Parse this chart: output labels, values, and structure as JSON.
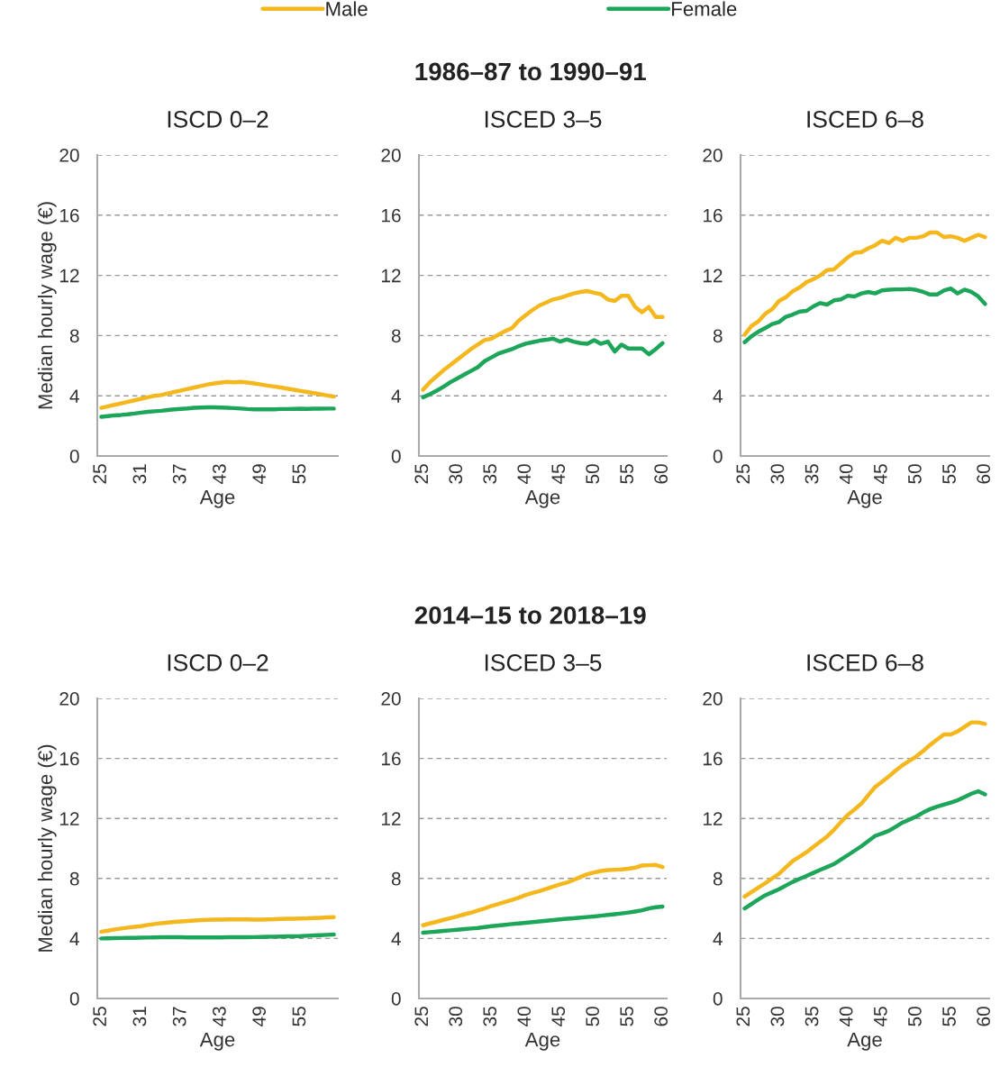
{
  "chart_data": [
    {
      "type": "line",
      "title": "ISCD 0–2",
      "xlabel": "Age",
      "ylabel": "Median hourly wage (€)",
      "ylim": [
        0,
        20
      ],
      "yticks": [
        0,
        4,
        8,
        12,
        16,
        20
      ],
      "grid": "y",
      "legend": "top",
      "categories": [
        "25",
        null,
        null,
        null,
        null,
        null,
        "31",
        null,
        null,
        null,
        null,
        null,
        "37",
        null,
        null,
        null,
        null,
        null,
        "43",
        null,
        null,
        null,
        null,
        null,
        "49",
        null,
        null,
        null,
        null,
        null,
        "55",
        null,
        null,
        null,
        null,
        null
      ],
      "series": [
        {
          "name": "Male",
          "color": "#f4b71e",
          "values": [
            3.2,
            3.3,
            3.4,
            3.5,
            3.6,
            3.7,
            3.8,
            3.9,
            4.0,
            4.05,
            4.15,
            4.25,
            4.35,
            4.45,
            4.55,
            4.65,
            4.75,
            4.82,
            4.88,
            4.92,
            4.9,
            4.92,
            4.88,
            4.82,
            4.75,
            4.68,
            4.62,
            4.55,
            4.48,
            4.4,
            4.32,
            4.25,
            4.18,
            4.1,
            4.02,
            3.95
          ]
        },
        {
          "name": "Female",
          "color": "#1da65a",
          "values": [
            2.6,
            2.65,
            2.7,
            2.73,
            2.77,
            2.82,
            2.88,
            2.93,
            2.97,
            3.0,
            3.05,
            3.1,
            3.13,
            3.16,
            3.2,
            3.22,
            3.23,
            3.23,
            3.22,
            3.2,
            3.18,
            3.15,
            3.12,
            3.1,
            3.1,
            3.1,
            3.1,
            3.12,
            3.12,
            3.13,
            3.14,
            3.13,
            3.14,
            3.14,
            3.15,
            3.15
          ]
        }
      ]
    },
    {
      "type": "line",
      "title": "ISCED 3–5",
      "subtitle": "1986–87 to 1990–91",
      "xlabel": "Age",
      "ylim": [
        0,
        20
      ],
      "yticks": [
        0,
        4,
        8,
        12,
        16,
        20
      ],
      "grid": "y",
      "categories": [
        "25",
        null,
        null,
        null,
        null,
        "30",
        null,
        null,
        null,
        null,
        "35",
        null,
        null,
        null,
        null,
        "40",
        null,
        null,
        null,
        null,
        "45",
        null,
        null,
        null,
        null,
        "50",
        null,
        null,
        null,
        null,
        "55",
        null,
        null,
        null,
        null,
        "60"
      ],
      "series": [
        {
          "color": "#f4b71e",
          "values": [
            4.4,
            4.9,
            5.3,
            5.7,
            6.05,
            6.4,
            6.75,
            7.1,
            7.4,
            7.7,
            7.8,
            8.05,
            8.3,
            8.5,
            9.0,
            9.35,
            9.7,
            10.0,
            10.2,
            10.4,
            10.5,
            10.65,
            10.8,
            10.9,
            10.96,
            10.85,
            10.75,
            10.4,
            10.3,
            10.64,
            10.64,
            9.9,
            9.56,
            9.9,
            9.24,
            9.24
          ]
        },
        {
          "color": "#1da65a",
          "values": [
            3.9,
            4.1,
            4.34,
            4.6,
            4.9,
            5.15,
            5.4,
            5.65,
            5.9,
            6.3,
            6.55,
            6.8,
            6.95,
            7.1,
            7.3,
            7.46,
            7.56,
            7.66,
            7.72,
            7.8,
            7.6,
            7.74,
            7.6,
            7.5,
            7.46,
            7.7,
            7.46,
            7.6,
            6.94,
            7.4,
            7.14,
            7.14,
            7.14,
            6.76,
            7.1,
            7.5
          ]
        }
      ]
    },
    {
      "type": "line",
      "title": "ISCED 6–8",
      "xlabel": "Age",
      "ylim": [
        0,
        20
      ],
      "yticks": [
        0,
        4,
        8,
        12,
        16,
        20
      ],
      "grid": "y",
      "categories": [
        "25",
        null,
        null,
        null,
        null,
        "30",
        null,
        null,
        null,
        null,
        "35",
        null,
        null,
        null,
        null,
        "40",
        null,
        null,
        null,
        null,
        "45",
        null,
        null,
        null,
        null,
        "50",
        null,
        null,
        null,
        null,
        "55",
        null,
        null,
        null,
        null,
        "60"
      ],
      "series": [
        {
          "color": "#f4b71e",
          "values": [
            8.06,
            8.65,
            8.95,
            9.45,
            9.75,
            10.3,
            10.55,
            10.95,
            11.2,
            11.55,
            11.75,
            12.0,
            12.35,
            12.4,
            12.8,
            13.2,
            13.5,
            13.55,
            13.8,
            14.0,
            14.3,
            14.15,
            14.5,
            14.3,
            14.5,
            14.5,
            14.6,
            14.85,
            14.85,
            14.55,
            14.6,
            14.5,
            14.3,
            14.5,
            14.7,
            14.55
          ]
        },
        {
          "color": "#1da65a",
          "values": [
            7.56,
            7.96,
            8.26,
            8.5,
            8.77,
            8.9,
            9.25,
            9.4,
            9.6,
            9.64,
            9.94,
            10.16,
            10.06,
            10.34,
            10.4,
            10.65,
            10.6,
            10.8,
            10.9,
            10.8,
            11.0,
            11.05,
            11.07,
            11.07,
            11.1,
            11.03,
            10.9,
            10.73,
            10.73,
            11.0,
            11.13,
            10.8,
            11.05,
            10.9,
            10.6,
            10.1
          ]
        }
      ]
    },
    {
      "type": "line",
      "title": "ISCD 0–2",
      "xlabel": "Age",
      "ylabel": "Median hourly wage (€)",
      "ylim": [
        0,
        20
      ],
      "yticks": [
        0,
        4,
        8,
        12,
        16,
        20
      ],
      "grid": "y",
      "categories": [
        "25",
        null,
        null,
        null,
        null,
        null,
        "31",
        null,
        null,
        null,
        null,
        null,
        "37",
        null,
        null,
        null,
        null,
        null,
        "43",
        null,
        null,
        null,
        null,
        null,
        "49",
        null,
        null,
        null,
        null,
        null,
        "55",
        null,
        null,
        null,
        null,
        null
      ],
      "series": [
        {
          "color": "#f4b71e",
          "values": [
            4.45,
            4.52,
            4.6,
            4.66,
            4.72,
            4.77,
            4.82,
            4.9,
            4.96,
            5.02,
            5.06,
            5.1,
            5.14,
            5.17,
            5.2,
            5.22,
            5.24,
            5.25,
            5.26,
            5.27,
            5.27,
            5.27,
            5.27,
            5.26,
            5.26,
            5.27,
            5.28,
            5.3,
            5.31,
            5.32,
            5.33,
            5.34,
            5.36,
            5.38,
            5.4,
            5.42
          ]
        },
        {
          "color": "#1da65a",
          "values": [
            4.0,
            4.01,
            4.02,
            4.03,
            4.04,
            4.04,
            4.05,
            4.06,
            4.07,
            4.08,
            4.08,
            4.08,
            4.08,
            4.07,
            4.07,
            4.07,
            4.07,
            4.07,
            4.07,
            4.08,
            4.08,
            4.08,
            4.08,
            4.09,
            4.1,
            4.11,
            4.12,
            4.13,
            4.14,
            4.15,
            4.16,
            4.18,
            4.2,
            4.22,
            4.24,
            4.26
          ]
        }
      ]
    },
    {
      "type": "line",
      "title": "ISCED 3–5",
      "subtitle": "2014–15 to 2018–19",
      "xlabel": "Age",
      "ylim": [
        0,
        20
      ],
      "yticks": [
        0,
        4,
        8,
        12,
        16,
        20
      ],
      "grid": "y",
      "categories": [
        "25",
        null,
        null,
        null,
        null,
        "30",
        null,
        null,
        null,
        null,
        "35",
        null,
        null,
        null,
        null,
        "40",
        null,
        null,
        null,
        null,
        "45",
        null,
        null,
        null,
        null,
        "50",
        null,
        null,
        null,
        null,
        "55",
        null,
        null,
        null,
        null,
        "60"
      ],
      "series": [
        {
          "color": "#f4b71e",
          "values": [
            4.88,
            5.0,
            5.12,
            5.24,
            5.35,
            5.47,
            5.6,
            5.72,
            5.86,
            6.0,
            6.17,
            6.3,
            6.43,
            6.57,
            6.72,
            6.9,
            7.04,
            7.16,
            7.3,
            7.46,
            7.6,
            7.72,
            7.9,
            8.1,
            8.28,
            8.4,
            8.5,
            8.56,
            8.58,
            8.6,
            8.65,
            8.72,
            8.86,
            8.88,
            8.9,
            8.76
          ]
        },
        {
          "color": "#1da65a",
          "values": [
            4.38,
            4.42,
            4.46,
            4.5,
            4.54,
            4.58,
            4.62,
            4.66,
            4.7,
            4.76,
            4.82,
            4.86,
            4.91,
            4.96,
            5.0,
            5.05,
            5.09,
            5.13,
            5.18,
            5.22,
            5.27,
            5.31,
            5.35,
            5.39,
            5.43,
            5.47,
            5.52,
            5.57,
            5.62,
            5.67,
            5.73,
            5.8,
            5.88,
            6.0,
            6.08,
            6.13
          ]
        }
      ]
    },
    {
      "type": "line",
      "title": "ISCED 6–8",
      "xlabel": "Age",
      "ylim": [
        0,
        20
      ],
      "yticks": [
        0,
        4,
        8,
        12,
        16,
        20
      ],
      "grid": "y",
      "categories": [
        "25",
        null,
        null,
        null,
        null,
        "30",
        null,
        null,
        null,
        null,
        "35",
        null,
        null,
        null,
        null,
        "40",
        null,
        null,
        null,
        null,
        "45",
        null,
        null,
        null,
        null,
        "50",
        null,
        null,
        null,
        null,
        "55",
        null,
        null,
        null,
        null,
        "60"
      ],
      "series": [
        {
          "color": "#f4b71e",
          "values": [
            6.79,
            7.1,
            7.4,
            7.68,
            8.0,
            8.31,
            8.75,
            9.16,
            9.45,
            9.75,
            10.1,
            10.45,
            10.8,
            11.24,
            11.75,
            12.23,
            12.6,
            13.0,
            13.55,
            14.1,
            14.45,
            14.8,
            15.2,
            15.55,
            15.85,
            16.14,
            16.5,
            16.9,
            17.25,
            17.6,
            17.6,
            17.8,
            18.1,
            18.4,
            18.4,
            18.3
          ]
        },
        {
          "color": "#1da65a",
          "values": [
            6.0,
            6.3,
            6.6,
            6.88,
            7.08,
            7.28,
            7.53,
            7.77,
            7.97,
            8.17,
            8.37,
            8.57,
            8.76,
            8.96,
            9.25,
            9.55,
            9.85,
            10.15,
            10.5,
            10.84,
            11.0,
            11.18,
            11.45,
            11.73,
            11.93,
            12.13,
            12.4,
            12.62,
            12.78,
            12.92,
            13.06,
            13.21,
            13.43,
            13.65,
            13.81,
            13.6
          ]
        }
      ]
    }
  ]
}
